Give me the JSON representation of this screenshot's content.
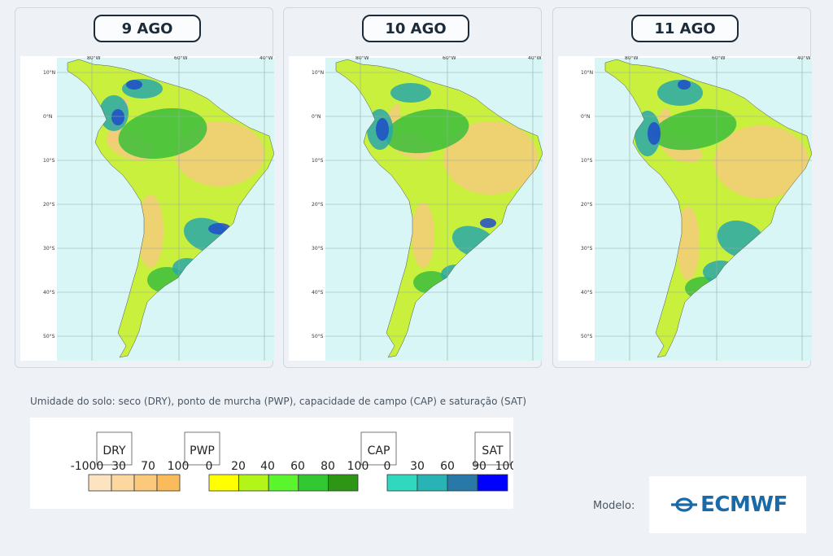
{
  "panels": [
    {
      "date": "9 AGO",
      "variant": 0
    },
    {
      "date": "10 AGO",
      "variant": 1
    },
    {
      "date": "11 AGO",
      "variant": 2
    }
  ],
  "map": {
    "lat_labels": [
      "10°N",
      "0°N",
      "10°S",
      "20°S",
      "30°S",
      "40°S",
      "50°S"
    ],
    "lon_labels": [
      "80°W",
      "60°W",
      "40°W"
    ]
  },
  "caption": "Umidade do solo: seco (DRY), ponto de murcha (PWP), capacidade de campo (CAP) e saturação (SAT)",
  "legend": {
    "groups": [
      {
        "tag": "DRY",
        "ticks": [
          "-1000",
          "30",
          "70",
          "100"
        ],
        "colors": [
          "#fde4c0",
          "#fcd7a0",
          "#fbc97b",
          "#f9bb5c"
        ]
      },
      {
        "tag": "PWP",
        "ticks": [
          "0",
          "20",
          "40",
          "60",
          "80",
          "100"
        ],
        "colors": [
          "#ffff00",
          "#b4f519",
          "#5af52d",
          "#32c832",
          "#2d9614"
        ]
      },
      {
        "tag": "CAP",
        "ticks": [
          "0",
          "30",
          "60"
        ],
        "colors": [
          "#30d8c0",
          "#28b4b4",
          "#2878a8"
        ]
      },
      {
        "tag": "SAT",
        "ticks": [
          "90",
          "100"
        ],
        "colors": [
          "#0000ff"
        ]
      }
    ]
  },
  "modelo_label": "Modelo:",
  "logo": {
    "text": "ECMWF",
    "color": "#1b6aa8"
  },
  "colors": {
    "ocean": "#d8f6f6",
    "dry": "#f5cb7a",
    "pwp_low": "#c8f03c",
    "pwp_high": "#3cbe3c",
    "cap": "#28a8a8",
    "sat": "#1e4dc8",
    "grid": "#9aa"
  }
}
